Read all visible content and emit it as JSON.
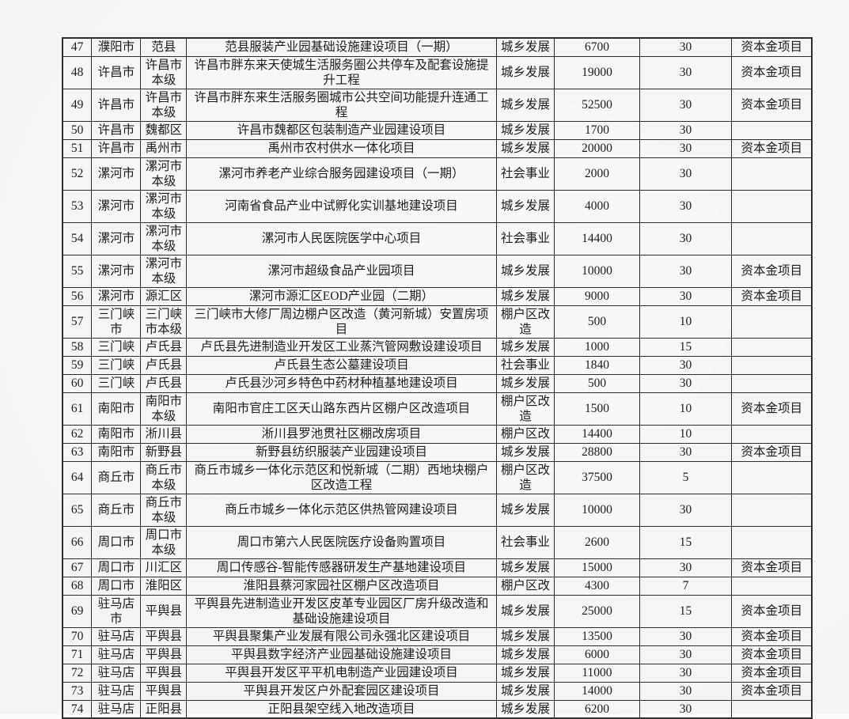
{
  "colors": {
    "paper": "#fcfcfa",
    "ink": "#1c1c1c",
    "line": "#2e2e2e",
    "note_text": "#1c1c1c"
  },
  "table": {
    "columns": [
      "no",
      "city",
      "county",
      "project",
      "category",
      "amount",
      "ratio",
      "note"
    ],
    "rows": [
      {
        "no": "47",
        "city": "濮阳市",
        "county": "范县",
        "project": "范县服装产业园基础设施建设项目（一期）",
        "category": "城乡发展",
        "amount": "6700",
        "ratio": "30",
        "note": "资本金项目"
      },
      {
        "no": "48",
        "city": "许昌市",
        "county": "许昌市本级",
        "project": "许昌市胖东来天使城生活服务圈公共停车及配套设施提升工程",
        "category": "城乡发展",
        "amount": "19000",
        "ratio": "30",
        "note": "资本金项目"
      },
      {
        "no": "49",
        "city": "许昌市",
        "county": "许昌市本级",
        "project": "许昌市胖东来生活服务圈城市公共空间功能提升连通工程",
        "category": "城乡发展",
        "amount": "52500",
        "ratio": "30",
        "note": "资本金项目"
      },
      {
        "no": "50",
        "city": "许昌市",
        "county": "魏都区",
        "project": "许昌市魏都区包装制造产业园建设项目",
        "category": "城乡发展",
        "amount": "1700",
        "ratio": "30",
        "note": ""
      },
      {
        "no": "51",
        "city": "许昌市",
        "county": "禹州市",
        "project": "禹州市农村供水一体化项目",
        "category": "城乡发展",
        "amount": "20000",
        "ratio": "30",
        "note": "资本金项目"
      },
      {
        "no": "52",
        "city": "漯河市",
        "county": "漯河市本级",
        "project": "漯河市养老产业综合服务园建设项目（一期）",
        "category": "社会事业",
        "amount": "2000",
        "ratio": "30",
        "note": ""
      },
      {
        "no": "53",
        "city": "漯河市",
        "county": "漯河市本级",
        "project": "河南省食品产业中试孵化实训基地建设项目",
        "category": "城乡发展",
        "amount": "4000",
        "ratio": "30",
        "note": ""
      },
      {
        "no": "54",
        "city": "漯河市",
        "county": "漯河市本级",
        "project": "漯河市人民医院医学中心项目",
        "category": "社会事业",
        "amount": "14400",
        "ratio": "30",
        "note": ""
      },
      {
        "no": "55",
        "city": "漯河市",
        "county": "漯河市本级",
        "project": "漯河市超级食品产业园项目",
        "category": "城乡发展",
        "amount": "10000",
        "ratio": "30",
        "note": "资本金项目"
      },
      {
        "no": "56",
        "city": "漯河市",
        "county": "源汇区",
        "project": "漯河市源汇区EOD产业园（二期）",
        "category": "城乡发展",
        "amount": "9000",
        "ratio": "30",
        "note": "资本金项目"
      },
      {
        "no": "57",
        "city": "三门峡市",
        "county": "三门峡市本级",
        "project": "三门峡市大修厂周边棚户区改造（黄河新城）安置房项目",
        "category": "棚户区改造",
        "amount": "500",
        "ratio": "10",
        "note": ""
      },
      {
        "no": "58",
        "city": "三门峡",
        "county": "卢氏县",
        "project": "卢氏县先进制造业开发区工业蒸汽管网敷设建设项目",
        "category": "城乡发展",
        "amount": "1000",
        "ratio": "15",
        "note": ""
      },
      {
        "no": "59",
        "city": "三门峡",
        "county": "卢氏县",
        "project": "卢氏县生态公墓建设项目",
        "category": "社会事业",
        "amount": "1840",
        "ratio": "30",
        "note": ""
      },
      {
        "no": "60",
        "city": "三门峡",
        "county": "卢氏县",
        "project": "卢氏县沙河乡特色中药材种植基地建设项目",
        "category": "城乡发展",
        "amount": "500",
        "ratio": "30",
        "note": ""
      },
      {
        "no": "61",
        "city": "南阳市",
        "county": "南阳市本级",
        "project": "南阳市官庄工区天山路东西片区棚户区改造项目",
        "category": "棚户区改造",
        "amount": "1500",
        "ratio": "10",
        "note": "资本金项目"
      },
      {
        "no": "62",
        "city": "南阳市",
        "county": "淅川县",
        "project": "淅川县罗池贯社区棚改房项目",
        "category": "棚户区改",
        "amount": "14400",
        "ratio": "10",
        "note": ""
      },
      {
        "no": "63",
        "city": "南阳市",
        "county": "新野县",
        "project": "新野县纺织服装产业园建设项目",
        "category": "城乡发展",
        "amount": "28800",
        "ratio": "30",
        "note": "资本金项目"
      },
      {
        "no": "64",
        "city": "商丘市",
        "county": "商丘市本级",
        "project": "商丘市城乡一体化示范区和悦新城（二期）西地块棚户区改造工程",
        "category": "棚户区改造",
        "amount": "37500",
        "ratio": "5",
        "note": ""
      },
      {
        "no": "65",
        "city": "商丘市",
        "county": "商丘市本级",
        "project": "商丘市城乡一体化示范区供热管网建设项目",
        "category": "城乡发展",
        "amount": "10000",
        "ratio": "30",
        "note": ""
      },
      {
        "no": "66",
        "city": "周口市",
        "county": "周口市本级",
        "project": "周口市第六人民医院医疗设备购置项目",
        "category": "社会事业",
        "amount": "2600",
        "ratio": "15",
        "note": ""
      },
      {
        "no": "67",
        "city": "周口市",
        "county": "川汇区",
        "project": "周口传感谷-智能传感器研发生产基地建设项目",
        "category": "城乡发展",
        "amount": "15000",
        "ratio": "30",
        "note": "资本金项目"
      },
      {
        "no": "68",
        "city": "周口市",
        "county": "淮阳区",
        "project": "淮阳县蔡河家园社区棚户区改造项目",
        "category": "棚户区改",
        "amount": "4300",
        "ratio": "7",
        "note": ""
      },
      {
        "no": "69",
        "city": "驻马店市",
        "county": "平舆县",
        "project": "平舆县先进制造业开发区皮革专业园区厂房升级改造和基础设施建设项目",
        "category": "城乡发展",
        "amount": "25000",
        "ratio": "15",
        "note": "资本金项目"
      },
      {
        "no": "70",
        "city": "驻马店",
        "county": "平舆县",
        "project": "平舆县聚集产业发展有限公司永强北区建设项目",
        "category": "城乡发展",
        "amount": "13500",
        "ratio": "30",
        "note": "资本金项目"
      },
      {
        "no": "71",
        "city": "驻马店",
        "county": "平舆县",
        "project": "平舆县数字经济产业园基础设施建设项目",
        "category": "城乡发展",
        "amount": "6000",
        "ratio": "30",
        "note": "资本金项目"
      },
      {
        "no": "72",
        "city": "驻马店",
        "county": "平舆县",
        "project": "平舆县开发区平平机电制造产业园建设项目",
        "category": "城乡发展",
        "amount": "11000",
        "ratio": "30",
        "note": "资本金项目"
      },
      {
        "no": "73",
        "city": "驻马店",
        "county": "平舆县",
        "project": "平舆县开发区户外配套园区建设项目",
        "category": "城乡发展",
        "amount": "14000",
        "ratio": "30",
        "note": "资本金项目"
      },
      {
        "no": "74",
        "city": "驻马店",
        "county": "正阳县",
        "project": "正阳县架空线入地改造项目",
        "category": "城乡发展",
        "amount": "6200",
        "ratio": "30",
        "note": ""
      }
    ]
  }
}
